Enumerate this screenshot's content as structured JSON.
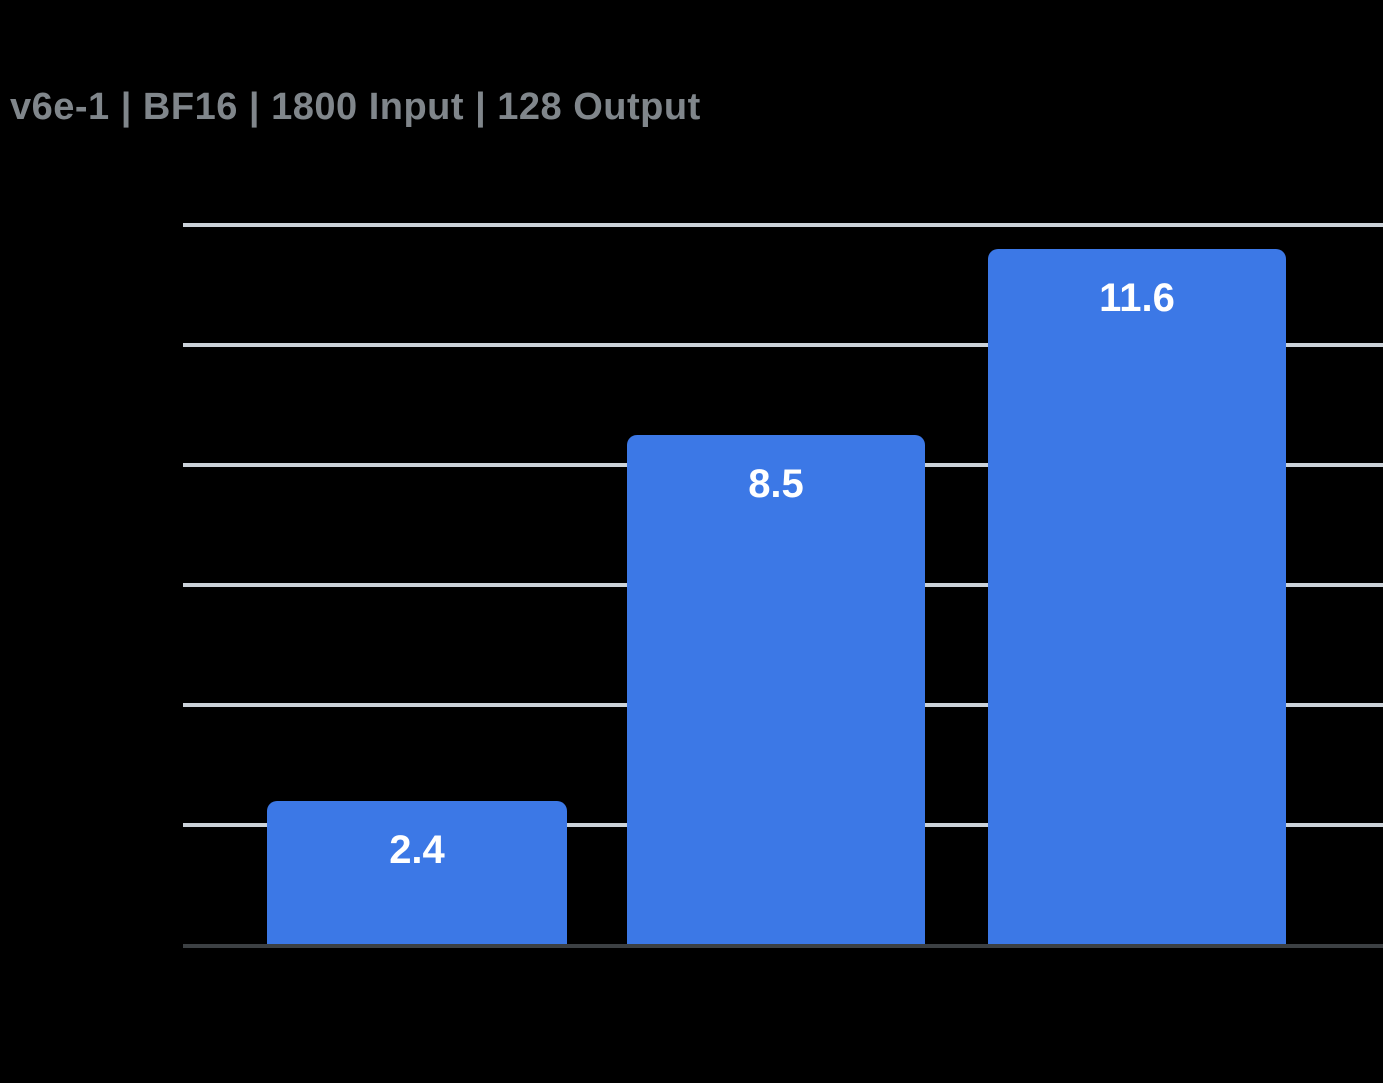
{
  "colors": {
    "background": "#000000",
    "bar": "#3c78e6",
    "grid": "#cbd2d9",
    "axis": "#3c4043",
    "title": "#80868b",
    "bar_label": "#ffffff"
  },
  "chart_data": {
    "type": "bar",
    "title": "v6e-1  |  BF16  |  1800 Input  |  128 Output",
    "values": [
      2.4,
      8.5,
      11.6
    ],
    "data_labels": [
      "2.4",
      "8.5",
      "11.6"
    ],
    "x_tick_labels": [],
    "y_tick_labels": [],
    "ylim": [
      0,
      12
    ],
    "grid": true,
    "gridline_step": 2,
    "legend": false,
    "data_labels_position": "inside-top",
    "background": "black"
  }
}
